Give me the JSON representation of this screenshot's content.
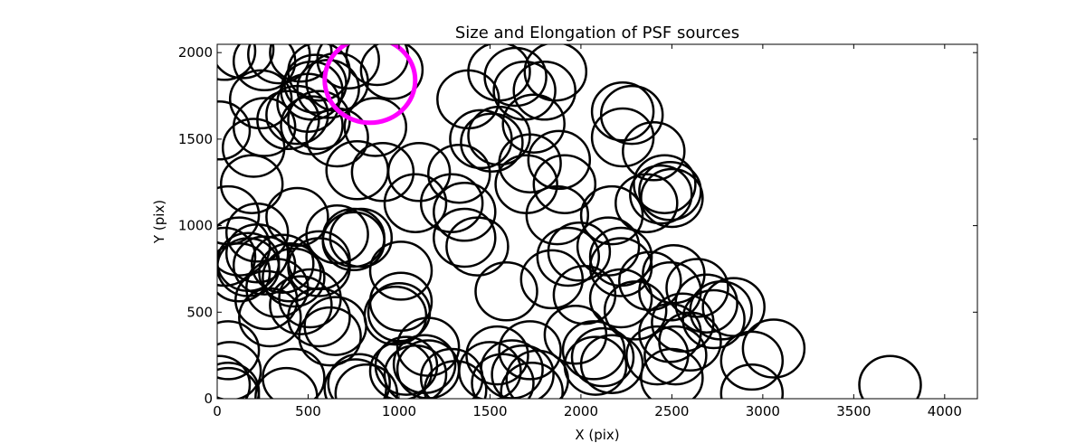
{
  "chart_data": {
    "type": "scatter",
    "title": "Size and Elongation of PSF sources",
    "xlabel": "X (pix)",
    "ylabel": "Y (pix)",
    "xlim": [
      0,
      4180
    ],
    "ylim": [
      0,
      2048
    ],
    "x_ticks": [
      0,
      500,
      1000,
      1500,
      2000,
      2500,
      3000,
      3500,
      4000
    ],
    "y_ticks": [
      0,
      500,
      1000,
      1500,
      2000
    ],
    "grid": false,
    "legend": "none",
    "marker": "ellipse outline",
    "highlight_color": "#ff00ff",
    "series": [
      {
        "points": [
          [
            40,
            2010
          ],
          [
            140,
            2020
          ],
          [
            260,
            1950
          ],
          [
            340,
            1990
          ],
          [
            460,
            2000
          ],
          [
            560,
            1890
          ],
          [
            720,
            1960
          ],
          [
            880,
            1980
          ],
          [
            960,
            1900
          ],
          [
            540,
            1820
          ],
          [
            610,
            1790
          ],
          [
            660,
            1830
          ],
          [
            240,
            1730
          ],
          [
            500,
            1710
          ],
          [
            520,
            1780
          ],
          [
            10,
            1550
          ],
          [
            260,
            1570
          ],
          [
            200,
            1450
          ],
          [
            390,
            1610
          ],
          [
            440,
            1640
          ],
          [
            560,
            1610
          ],
          [
            520,
            1580
          ],
          [
            660,
            1510
          ],
          [
            870,
            1570
          ],
          [
            770,
            1320
          ],
          [
            910,
            1310
          ],
          [
            1110,
            1310
          ],
          [
            1090,
            1130
          ],
          [
            1330,
            1300
          ],
          [
            1290,
            1130
          ],
          [
            1360,
            1080
          ],
          [
            1360,
            930
          ],
          [
            1430,
            880
          ],
          [
            1380,
            1730
          ],
          [
            1450,
            1500
          ],
          [
            1510,
            1480
          ],
          [
            1550,
            1520
          ],
          [
            1550,
            1890
          ],
          [
            1640,
            1860
          ],
          [
            1690,
            1780
          ],
          [
            1860,
            1890
          ],
          [
            1800,
            1780
          ],
          [
            1740,
            1590
          ],
          [
            1720,
            1360
          ],
          [
            1880,
            1380
          ],
          [
            1700,
            1240
          ],
          [
            1910,
            1240
          ],
          [
            1870,
            1060
          ],
          [
            2170,
            1060
          ],
          [
            2230,
            1660
          ],
          [
            2280,
            1640
          ],
          [
            2230,
            1510
          ],
          [
            2400,
            1430
          ],
          [
            2460,
            1240
          ],
          [
            2440,
            1180
          ],
          [
            2360,
            1130
          ],
          [
            2490,
            1200
          ],
          [
            2500,
            1160
          ],
          [
            190,
            1240
          ],
          [
            60,
            1060
          ],
          [
            440,
            1050
          ],
          [
            220,
            960
          ],
          [
            120,
            880
          ],
          [
            40,
            820
          ],
          [
            170,
            790
          ],
          [
            220,
            840
          ],
          [
            260,
            770
          ],
          [
            120,
            730
          ],
          [
            170,
            760
          ],
          [
            360,
            780
          ],
          [
            400,
            730
          ],
          [
            560,
            760
          ],
          [
            560,
            800
          ],
          [
            660,
            950
          ],
          [
            750,
            910
          ],
          [
            750,
            930
          ],
          [
            790,
            930
          ],
          [
            420,
            700
          ],
          [
            460,
            540
          ],
          [
            510,
            580
          ],
          [
            330,
            640
          ],
          [
            270,
            570
          ],
          [
            290,
            470
          ],
          [
            560,
            470
          ],
          [
            620,
            360
          ],
          [
            650,
            420
          ],
          [
            980,
            480
          ],
          [
            1000,
            500
          ],
          [
            1010,
            740
          ],
          [
            1010,
            560
          ],
          [
            1160,
            300
          ],
          [
            1590,
            620
          ],
          [
            1840,
            690
          ],
          [
            1930,
            820
          ],
          [
            1990,
            850
          ],
          [
            2150,
            880
          ],
          [
            2220,
            820
          ],
          [
            2220,
            760
          ],
          [
            2020,
            600
          ],
          [
            2220,
            580
          ],
          [
            2300,
            510
          ],
          [
            2380,
            680
          ],
          [
            2510,
            720
          ],
          [
            2490,
            620
          ],
          [
            2640,
            640
          ],
          [
            2690,
            550
          ],
          [
            2770,
            510
          ],
          [
            2840,
            530
          ],
          [
            2730,
            460
          ],
          [
            2560,
            440
          ],
          [
            2490,
            380
          ],
          [
            2600,
            330
          ],
          [
            1970,
            370
          ],
          [
            2070,
            280
          ],
          [
            2120,
            240
          ],
          [
            2080,
            190
          ],
          [
            2170,
            200
          ],
          [
            2420,
            250
          ],
          [
            2520,
            250
          ],
          [
            2500,
            120
          ],
          [
            2940,
            220
          ],
          [
            3060,
            290
          ],
          [
            2940,
            30
          ],
          [
            60,
            280
          ],
          [
            70,
            160
          ],
          [
            10,
            80
          ],
          [
            60,
            40
          ],
          [
            60,
            10
          ],
          [
            380,
            10
          ],
          [
            420,
            120
          ],
          [
            760,
            60
          ],
          [
            780,
            90
          ],
          [
            820,
            30
          ],
          [
            1010,
            160
          ],
          [
            1040,
            190
          ],
          [
            1090,
            140
          ],
          [
            1140,
            200
          ],
          [
            1160,
            170
          ],
          [
            1290,
            120
          ],
          [
            1310,
            50
          ],
          [
            1500,
            160
          ],
          [
            1540,
            250
          ],
          [
            1570,
            90
          ],
          [
            1620,
            170
          ],
          [
            1680,
            140
          ],
          [
            1720,
            280
          ],
          [
            1760,
            110
          ],
          [
            1730,
            40
          ],
          [
            3700,
            80
          ]
        ],
        "highlight_points": [
          [
            840,
            1840
          ]
        ]
      }
    ]
  }
}
